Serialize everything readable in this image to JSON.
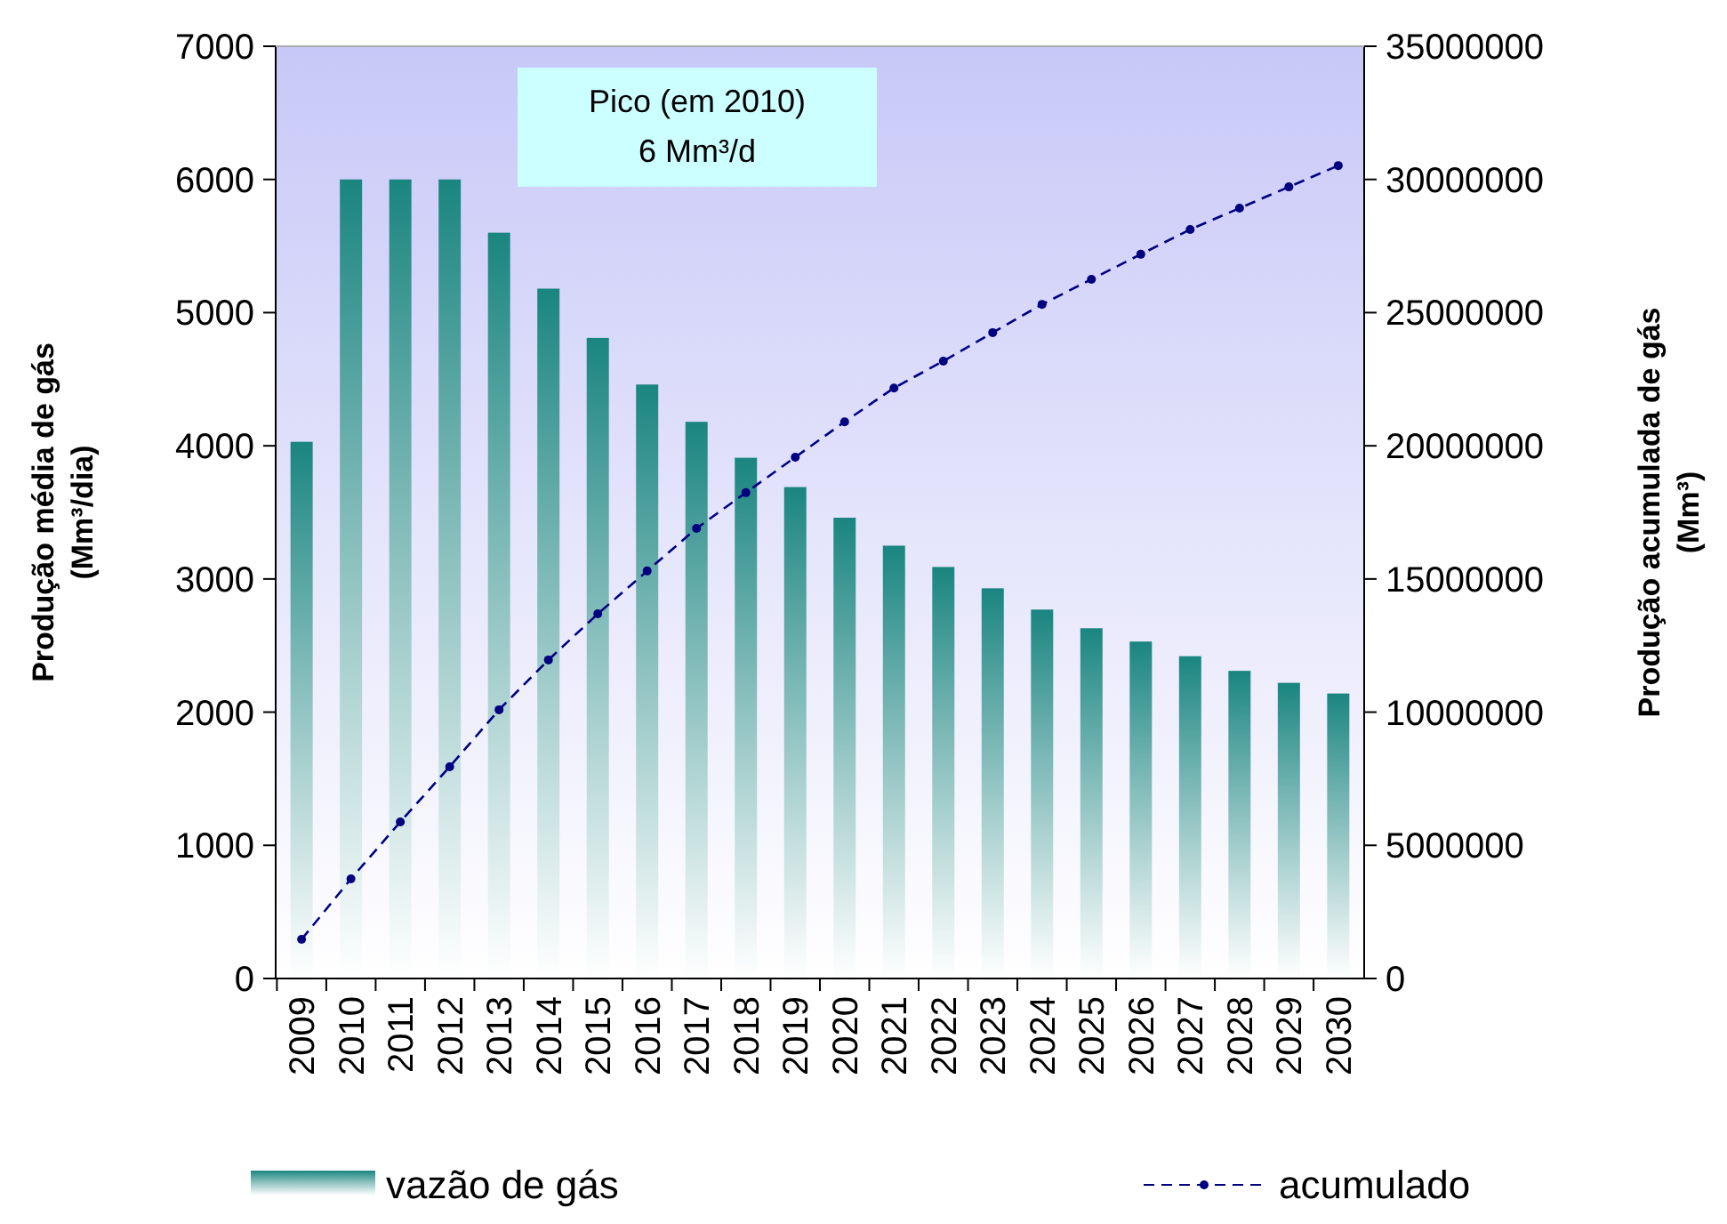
{
  "chart_data": {
    "type": "bar",
    "categories": [
      "2009",
      "2010",
      "2011",
      "2012",
      "2013",
      "2014",
      "2015",
      "2016",
      "2017",
      "2018",
      "2019",
      "2020",
      "2021",
      "2022",
      "2023",
      "2024",
      "2025",
      "2026",
      "2027",
      "2028",
      "2029",
      "2030"
    ],
    "series": [
      {
        "name": "vazão de gás",
        "color": "#1a8580",
        "values": [
          4030,
          6000,
          6000,
          6000,
          5600,
          5180,
          4810,
          4460,
          4180,
          3910,
          3690,
          3460,
          3250,
          3090,
          2930,
          2770,
          2630,
          2530,
          2420,
          2310,
          2220,
          2140
        ]
      },
      {
        "name": "acumulado",
        "type": "line",
        "axis": "y2",
        "color": "#000080",
        "marker": "circle",
        "line_style": "dashed",
        "values": [
          1470000,
          3740000,
          5880000,
          7950000,
          10090000,
          11960000,
          13690000,
          15300000,
          16900000,
          18240000,
          19570000,
          20900000,
          22170000,
          23180000,
          24250000,
          25310000,
          26250000,
          27190000,
          28120000,
          28920000,
          29720000,
          30520000
        ]
      }
    ],
    "ylabel": "Produção média de gás\n(Mm³/dia)",
    "y2label": "Produção acumulada de gás\n(Mm³)",
    "ylim": [
      0,
      7000
    ],
    "yticks": [
      0,
      1000,
      2000,
      3000,
      4000,
      5000,
      6000,
      7000
    ],
    "y2lim": [
      0,
      35000000
    ],
    "y2ticks": [
      0,
      5000000,
      10000000,
      15000000,
      20000000,
      25000000,
      30000000,
      35000000
    ],
    "annotations": [
      "Pico (em 2010)\n6 Mm³/d"
    ],
    "legend": "bottom",
    "grid": false
  }
}
